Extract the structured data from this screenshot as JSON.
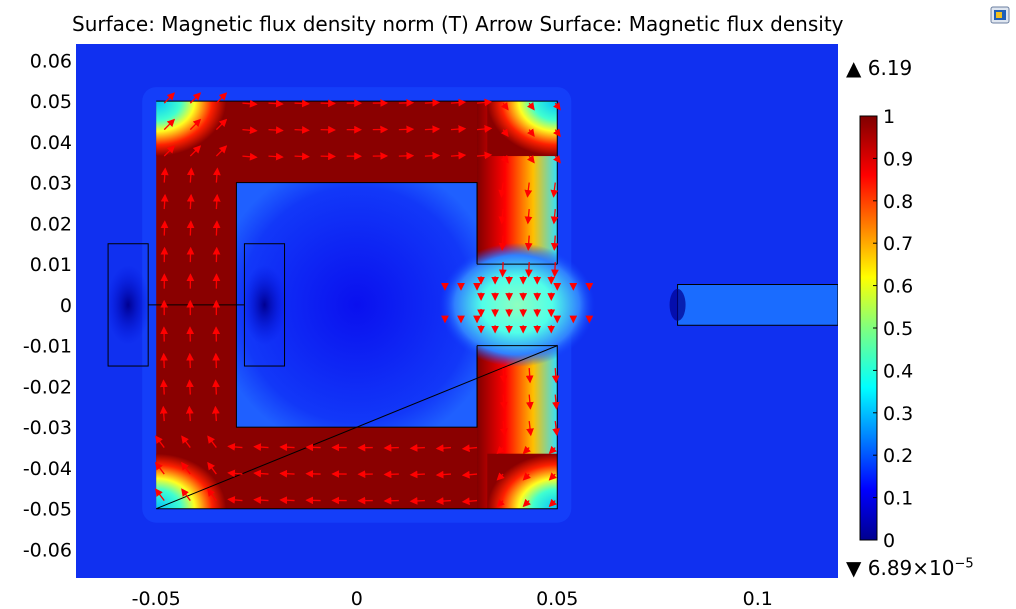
{
  "title": "Surface: Magnetic flux density norm (T)  Arrow Surface: Magnetic flux density",
  "toolbar": {
    "icon": "export-image-icon"
  },
  "colorbar": {
    "max_label": "6.19",
    "min_label_mantissa": "6.89×10",
    "min_label_exponent": "−5",
    "ticks": [
      "1",
      "0.9",
      "0.8",
      "0.7",
      "0.6",
      "0.5",
      "0.4",
      "0.3",
      "0.2",
      "0.1",
      "0"
    ],
    "colormap": "rainbow"
  },
  "chart_data": {
    "type": "heatmap",
    "title": "Surface: Magnetic flux density norm (T)  Arrow Surface: Magnetic flux density",
    "xlim": [
      -0.07,
      0.12
    ],
    "ylim": [
      -0.067,
      0.064
    ],
    "x_ticks": [
      -0.05,
      0,
      0.05,
      0.1
    ],
    "x_tick_labels": [
      "-0.05",
      "0",
      "0.05",
      "0.1"
    ],
    "y_ticks": [
      0.06,
      0.05,
      0.04,
      0.03,
      0.02,
      0.01,
      0,
      -0.01,
      -0.02,
      -0.03,
      -0.04,
      -0.05,
      -0.06
    ],
    "y_tick_labels": [
      "0.06",
      "0.05",
      "0.04",
      "0.03",
      "0.02",
      "0.01",
      "0",
      "-0.01",
      "-0.02",
      "-0.03",
      "-0.04",
      "-0.05",
      "-0.06"
    ],
    "color_range": [
      0,
      1
    ],
    "data_max": 6.19,
    "data_min": 6.89e-05,
    "geometry": {
      "core_outer": [
        -0.05,
        -0.05,
        0.05,
        0.05
      ],
      "core_inner": [
        -0.03,
        -0.03,
        0.03,
        0.03
      ],
      "air_gap": [
        0.03,
        -0.01,
        0.05,
        0.01
      ],
      "coil_left": [
        -0.062,
        -0.015,
        -0.052,
        0.015
      ],
      "coil_right": [
        -0.028,
        -0.015,
        -0.018,
        0.015
      ],
      "bar": [
        0.08,
        -0.005,
        0.12,
        0.005
      ]
    },
    "arrow_color": "#ff0000",
    "grid": false
  }
}
